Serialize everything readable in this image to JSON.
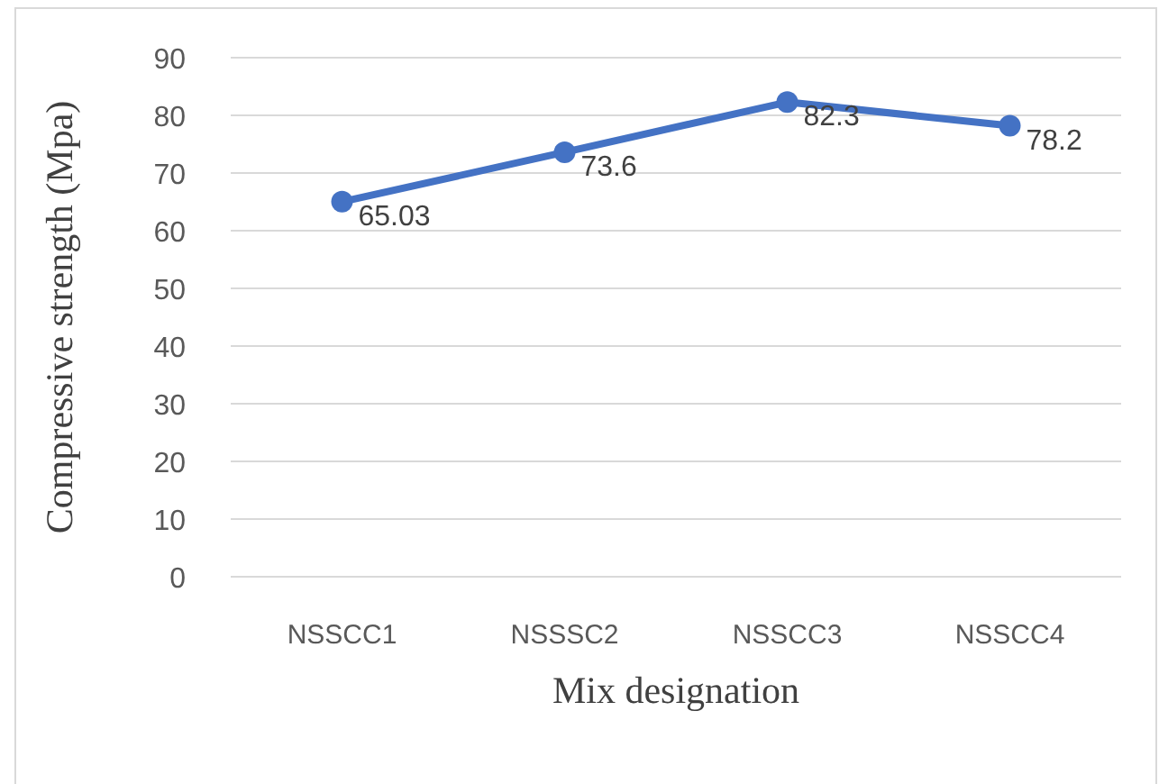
{
  "chart_data": {
    "type": "line",
    "categories": [
      "NSSCC1",
      "NSSSC2",
      "NSSCC3",
      "NSSCC4"
    ],
    "series": [
      {
        "color": "#4472c4",
        "values": [
          65.03,
          73.6,
          82.3,
          78.2
        ]
      }
    ],
    "xlabel": "Mix designation",
    "ylabel": "Compressive strength  (Mpa)",
    "ylim": [
      0,
      90
    ],
    "yticks": [
      0,
      10,
      20,
      30,
      40,
      50,
      60,
      70,
      80,
      90
    ],
    "grid": "y",
    "marker": "circle",
    "data_labels": true
  }
}
